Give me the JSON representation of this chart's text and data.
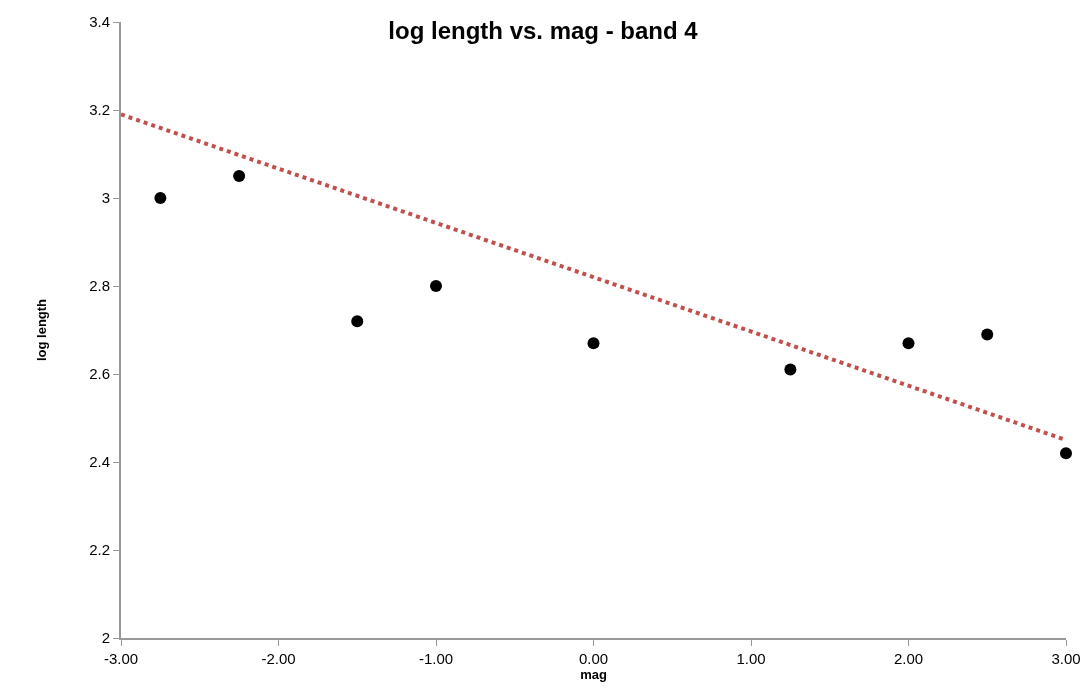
{
  "chart_data": {
    "type": "scatter",
    "title": "log length vs. mag - band 4",
    "xlabel": "mag",
    "ylabel": "log length",
    "xlim": [
      -3,
      3
    ],
    "xticks": [
      {
        "value": -3,
        "label": "-3.00"
      },
      {
        "value": -2,
        "label": "-2.00"
      },
      {
        "value": -1,
        "label": "-1.00"
      },
      {
        "value": 0,
        "label": "0.00"
      },
      {
        "value": 1,
        "label": "1.00"
      },
      {
        "value": 2,
        "label": "2.00"
      },
      {
        "value": 3,
        "label": "3.00"
      }
    ],
    "ylim": [
      2,
      3.4
    ],
    "yticks": [
      2,
      2.2,
      2.4,
      2.6,
      2.8,
      3,
      3.2,
      3.4
    ],
    "grid": false,
    "legend": false,
    "marker": "circle",
    "series": [
      {
        "type": "scatter",
        "color": "#000000",
        "x": [
          -2.75,
          -2.25,
          -1.5,
          -1,
          0,
          1.25,
          2,
          2.5,
          3
        ],
        "values": [
          3.0,
          3.05,
          2.72,
          2.8,
          2.67,
          2.61,
          2.67,
          2.69,
          2.42
        ]
      },
      {
        "type": "line",
        "color": "#c0504d",
        "line_style": "dotted",
        "marker": "none",
        "x": [
          -3,
          3
        ],
        "values": [
          3.19,
          2.45
        ]
      }
    ]
  }
}
